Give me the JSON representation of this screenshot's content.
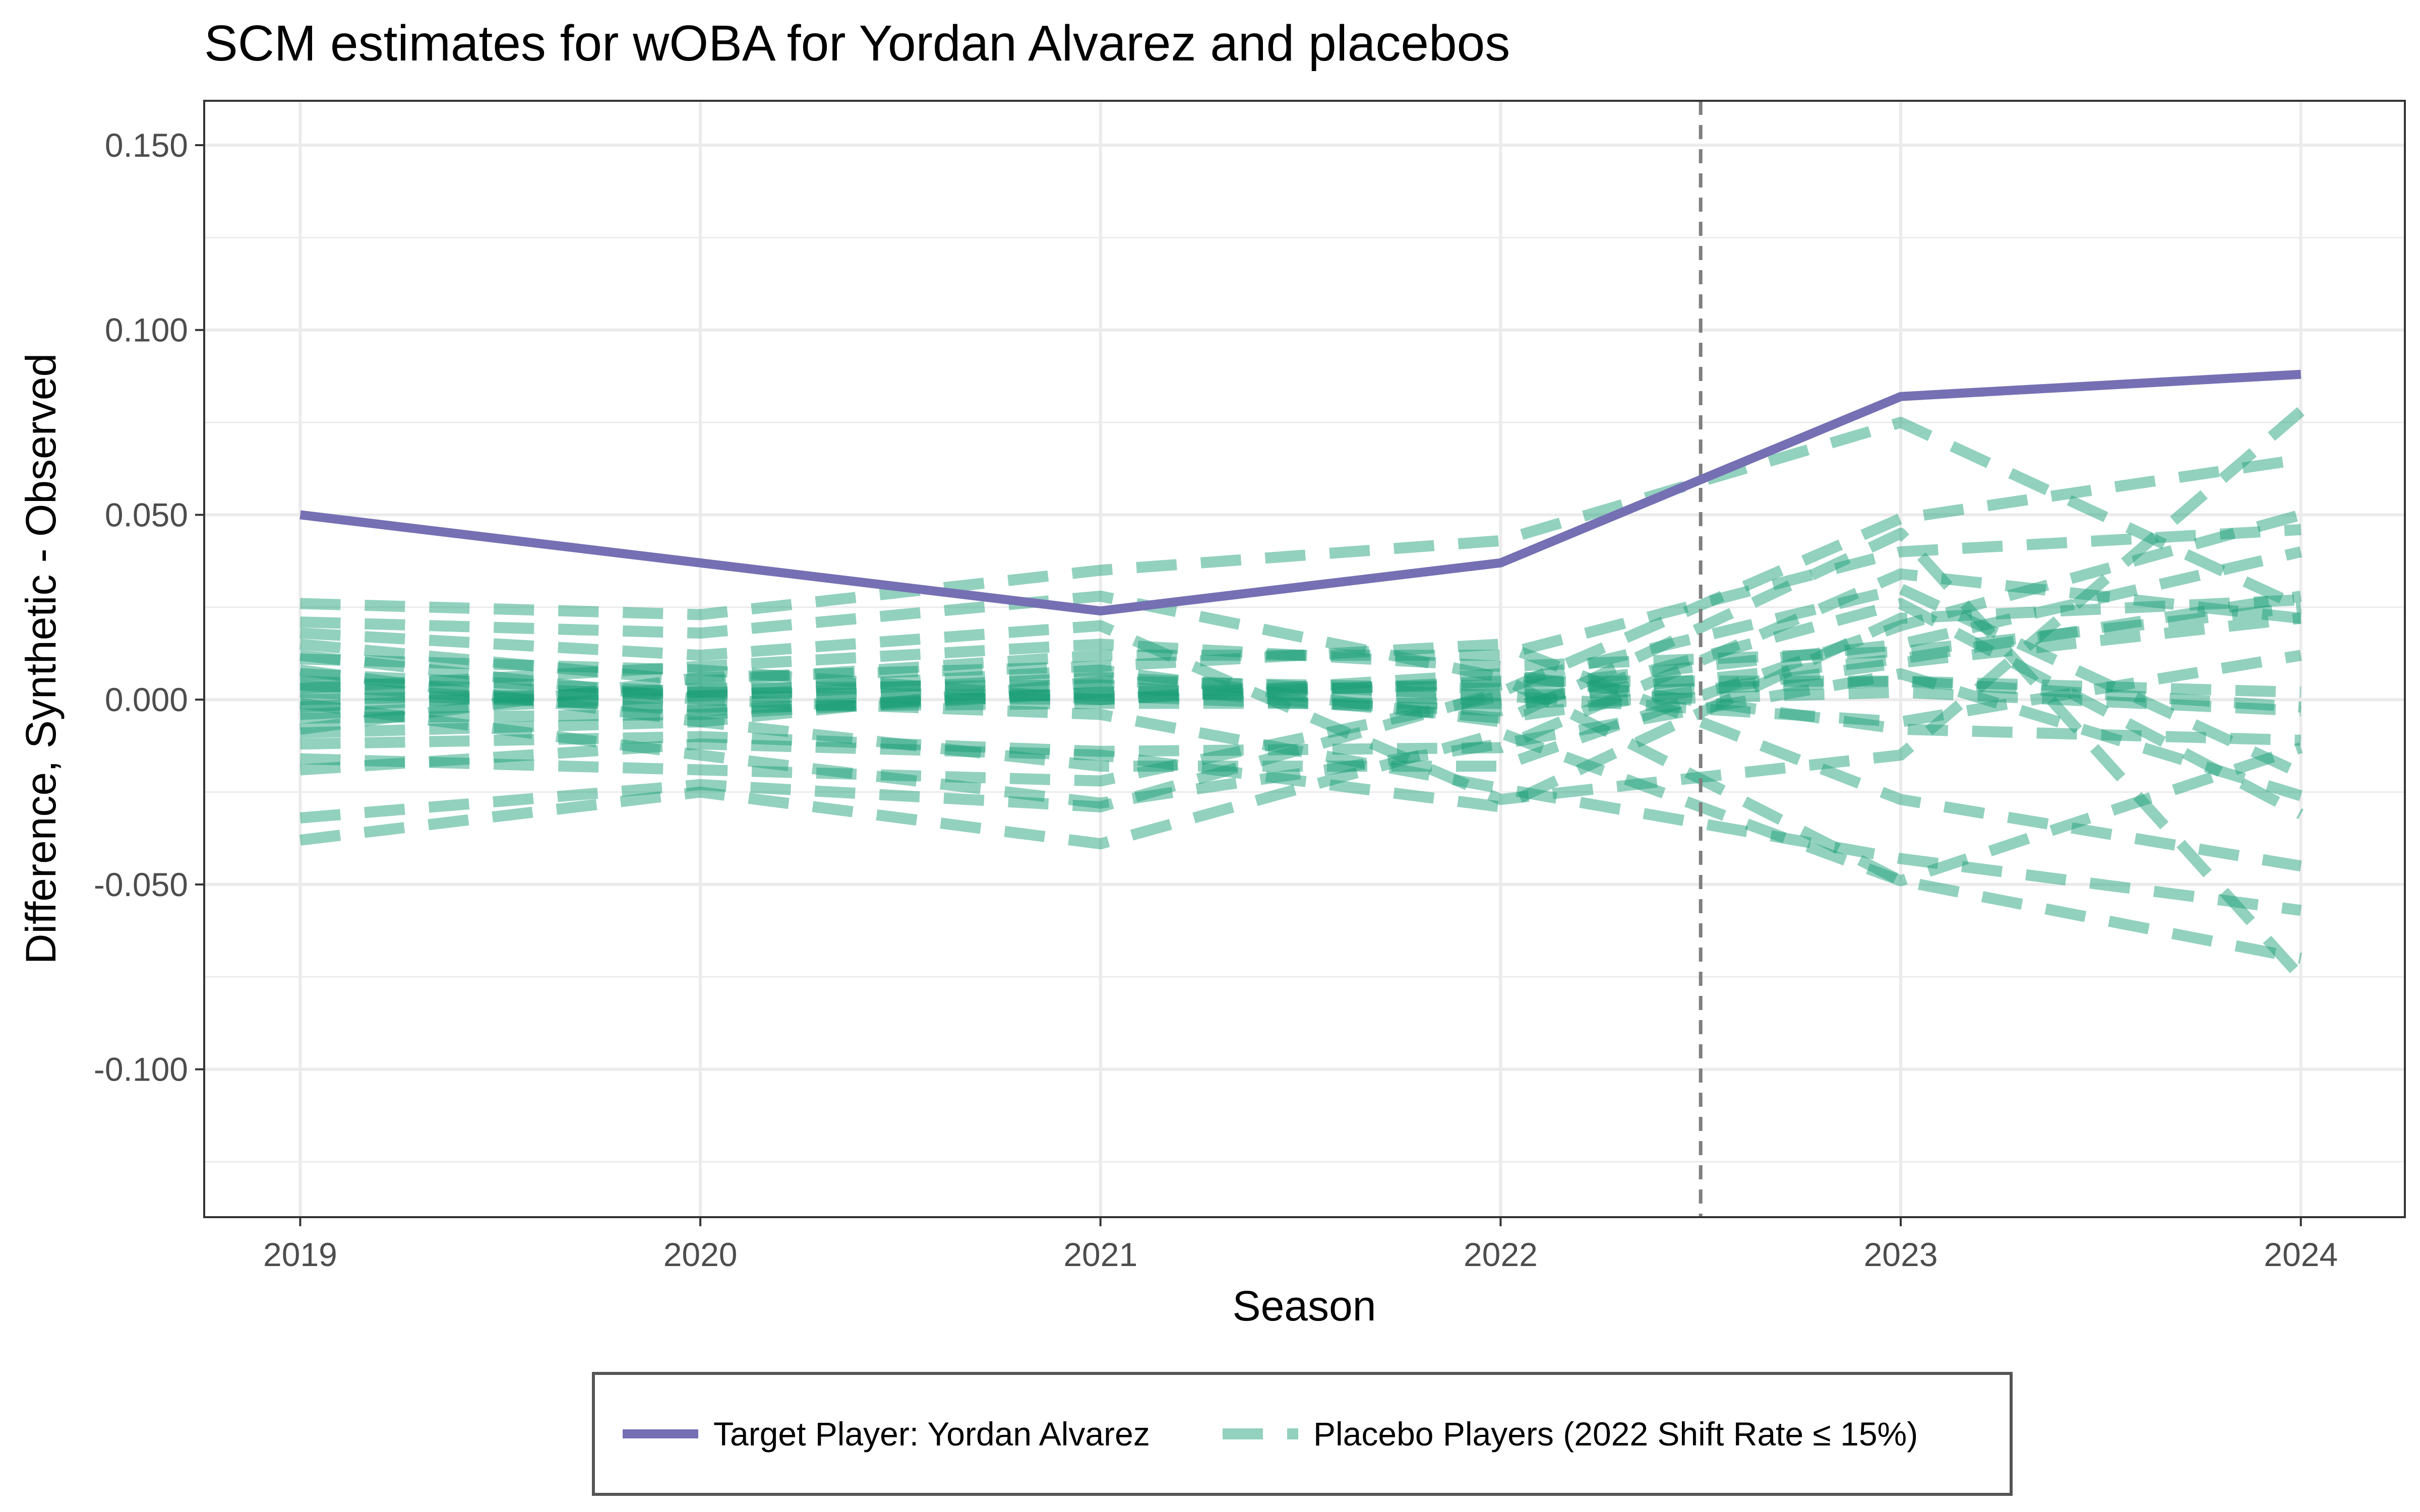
{
  "chart_data": {
    "type": "line",
    "title": "SCM estimates for wOBA for Yordan Alvarez and placebos",
    "xlabel": "Season",
    "ylabel": "Difference, Synthetic - Observed",
    "x": [
      2019,
      2020,
      2021,
      2022,
      2023,
      2024
    ],
    "x_tick_labels": [
      "2019",
      "2020",
      "2021",
      "2022",
      "2023",
      "2024"
    ],
    "y_tick_values": [
      0.15,
      0.1,
      0.05,
      0.0,
      -0.05,
      -0.1
    ],
    "y_tick_labels": [
      "0.150",
      "0.100",
      "0.050",
      "0.000",
      "-0.050",
      "-0.100"
    ],
    "xlim": [
      2018.76,
      2024.26
    ],
    "ylim": [
      -0.14,
      0.162
    ],
    "grid": true,
    "treatment_line": {
      "x": 2022.5,
      "style": "dashed",
      "color": "#7f7f7f"
    },
    "legend": {
      "position": "bottom",
      "items": [
        {
          "label": "Target Player: Yordan Alvarez",
          "color": "#7570b3",
          "style": "solid"
        },
        {
          "label": "Placebo Players (2022 Shift Rate ≤ 15%)",
          "color": "#1b9e77",
          "style": "dashed"
        }
      ]
    },
    "series": [
      {
        "name": "Target Player: Yordan Alvarez",
        "role": "target",
        "color": "#7570b3",
        "values": [
          0.05,
          0.037,
          0.024,
          0.037,
          0.082,
          0.088
        ]
      }
    ],
    "placebo_series": {
      "color": "#1b9e77",
      "values": [
        [
          0.026,
          0.023,
          0.035,
          0.043,
          0.075,
          0.025
        ],
        [
          -0.038,
          -0.025,
          -0.039,
          -0.009,
          -0.049,
          -0.013
        ],
        [
          -0.032,
          -0.023,
          -0.029,
          0.002,
          0.049,
          0.065
        ],
        [
          0.021,
          0.018,
          0.028,
          0.006,
          -0.049,
          -0.07
        ],
        [
          0.018,
          0.012,
          0.02,
          -0.027,
          -0.015,
          0.078
        ],
        [
          0.015,
          0.005,
          0.012,
          0.012,
          0.04,
          0.046
        ],
        [
          0.012,
          0.0,
          -0.004,
          -0.024,
          -0.043,
          -0.057
        ],
        [
          0.008,
          -0.006,
          -0.018,
          -0.018,
          0.02,
          0.05
        ],
        [
          0.005,
          0.001,
          0.0,
          0.005,
          0.005,
          0.002
        ],
        [
          0.002,
          -0.002,
          -0.001,
          -0.001,
          0.002,
          -0.003
        ],
        [
          -0.002,
          0.003,
          0.004,
          -0.005,
          0.01,
          0.022
        ],
        [
          -0.005,
          -0.004,
          0.002,
          0.004,
          0.03,
          -0.02
        ],
        [
          -0.008,
          0.006,
          0.009,
          0.015,
          -0.027,
          -0.045
        ],
        [
          -0.012,
          -0.01,
          -0.014,
          -0.013,
          0.034,
          0.022
        ],
        [
          -0.016,
          -0.019,
          -0.022,
          0.001,
          -0.006,
          0.012
        ],
        [
          -0.019,
          -0.012,
          -0.015,
          -0.029,
          0.022,
          0.027
        ],
        [
          0.0,
          0.002,
          0.001,
          -0.003,
          0.026,
          -0.031
        ],
        [
          0.003,
          0.009,
          0.015,
          0.009,
          0.013,
          0.025
        ],
        [
          -0.001,
          -0.015,
          -0.028,
          -0.012,
          0.007,
          -0.026
        ],
        [
          0.007,
          0.002,
          0.008,
          -0.006,
          0.045,
          -0.075
        ],
        [
          -0.009,
          -0.006,
          0.005,
          0.003,
          0.015,
          0.04
        ],
        [
          0.011,
          0.008,
          0.0,
          0.007,
          -0.008,
          -0.011
        ],
        [
          0.004,
          -0.003,
          0.002,
          0.0,
          0.011,
          0.028
        ],
        [
          -0.004,
          0.001,
          0.006,
          0.001,
          0.005,
          -0.002
        ]
      ]
    }
  }
}
